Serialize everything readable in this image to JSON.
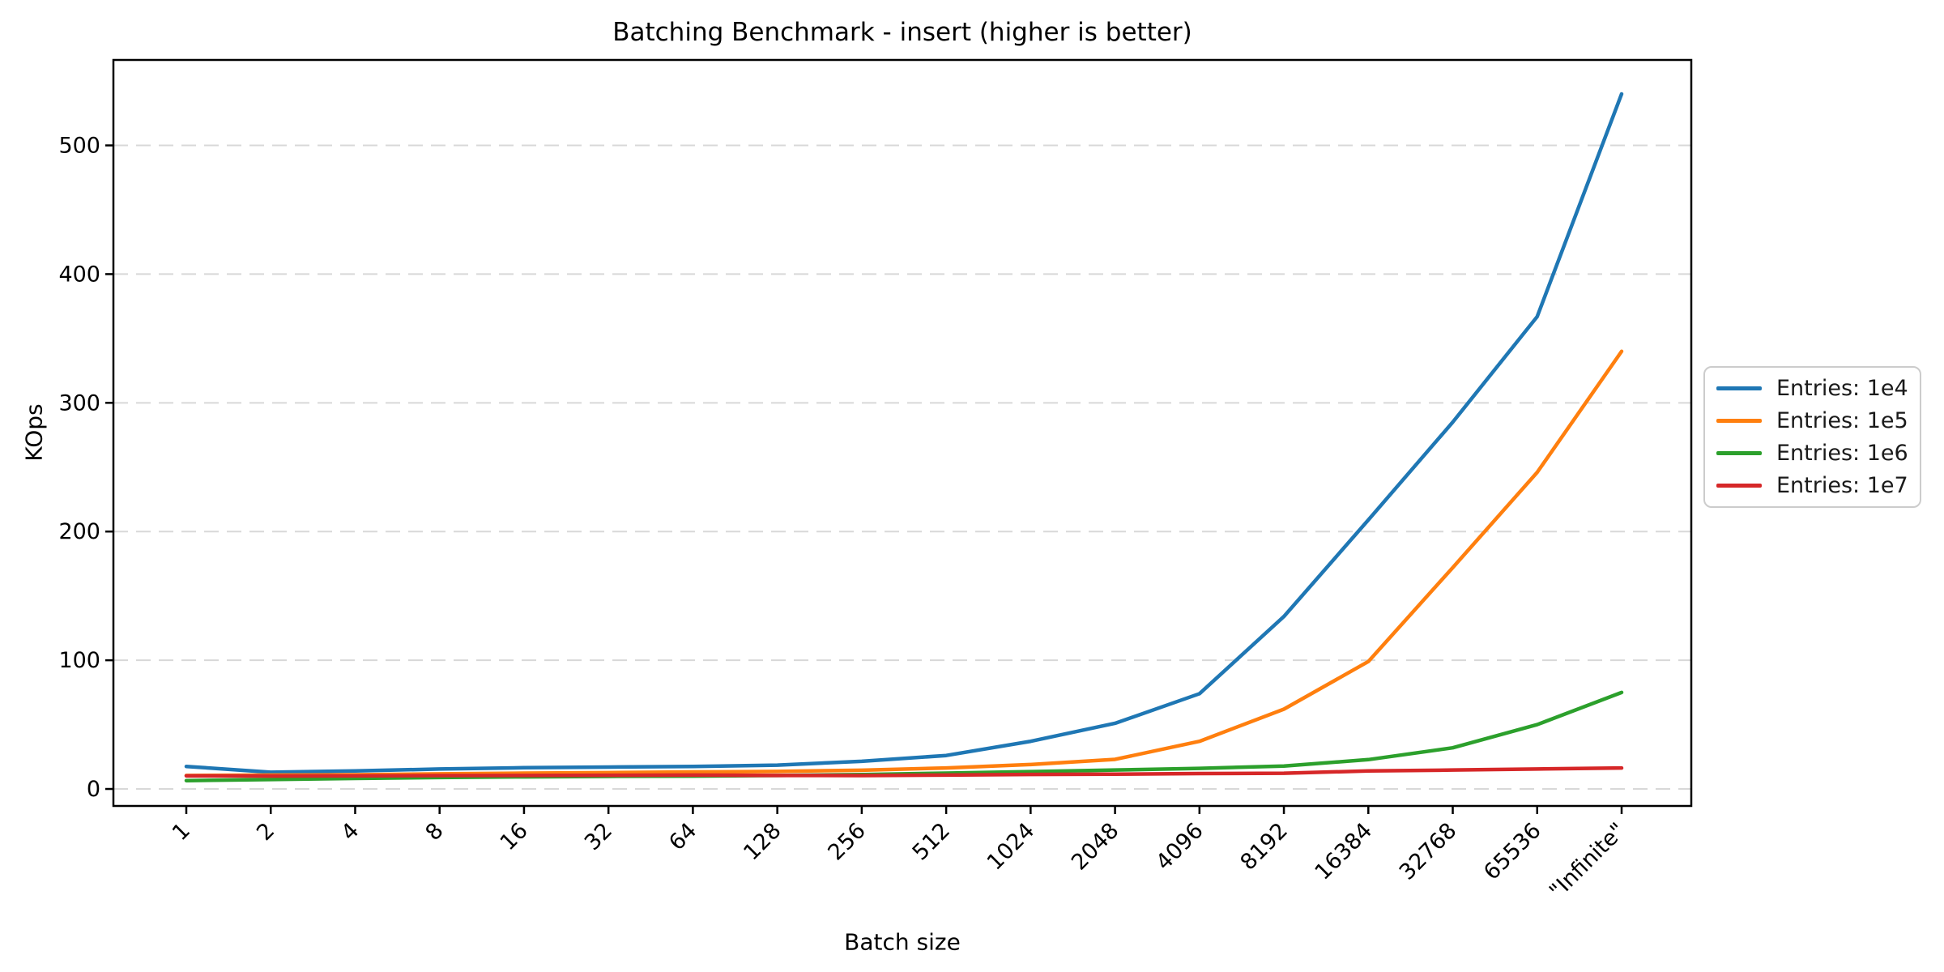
{
  "chart_data": {
    "type": "line",
    "title": "Batching Benchmark - insert (higher is better)",
    "xlabel": "Batch size",
    "ylabel": "KOps",
    "grid": "horizontal-dashed",
    "legend_position": "right-outside",
    "categories": [
      "1",
      "2",
      "4",
      "8",
      "16",
      "32",
      "64",
      "128",
      "256",
      "512",
      "1024",
      "2048",
      "4096",
      "8192",
      "16384",
      "32768",
      "65536",
      "\"Infinite\""
    ],
    "y_ticks": [
      0,
      100,
      200,
      300,
      400,
      500
    ],
    "ylim": [
      -13.2,
      566.4
    ],
    "series": [
      {
        "name": "Entries: 1e4",
        "color": "#1f77b4",
        "values": [
          17.5,
          13,
          14,
          15.5,
          16.5,
          17,
          17.5,
          18.5,
          21.5,
          26,
          37,
          51,
          74,
          134,
          209,
          285,
          367,
          540
        ]
      },
      {
        "name": "Entries: 1e5",
        "color": "#ff7f0e",
        "values": [
          10.5,
          10.8,
          11,
          11.7,
          12.3,
          12.7,
          13.2,
          13.6,
          14.6,
          16.3,
          19,
          23,
          37,
          62,
          99,
          172,
          246,
          340
        ]
      },
      {
        "name": "Entries: 1e6",
        "color": "#2ca02c",
        "values": [
          6.5,
          7.3,
          8.2,
          8.9,
          9.4,
          9.8,
          10,
          10.5,
          11.2,
          12.3,
          13.5,
          14.7,
          16,
          17.8,
          22.8,
          32,
          50,
          75
        ]
      },
      {
        "name": "Entries: 1e7",
        "color": "#d62728",
        "values": [
          10.2,
          10,
          10.2,
          10.4,
          10.5,
          10.6,
          10.8,
          10.5,
          10.4,
          10.8,
          11.3,
          11.5,
          12,
          12.2,
          14,
          14.7,
          15.5,
          16.3
        ]
      }
    ]
  }
}
